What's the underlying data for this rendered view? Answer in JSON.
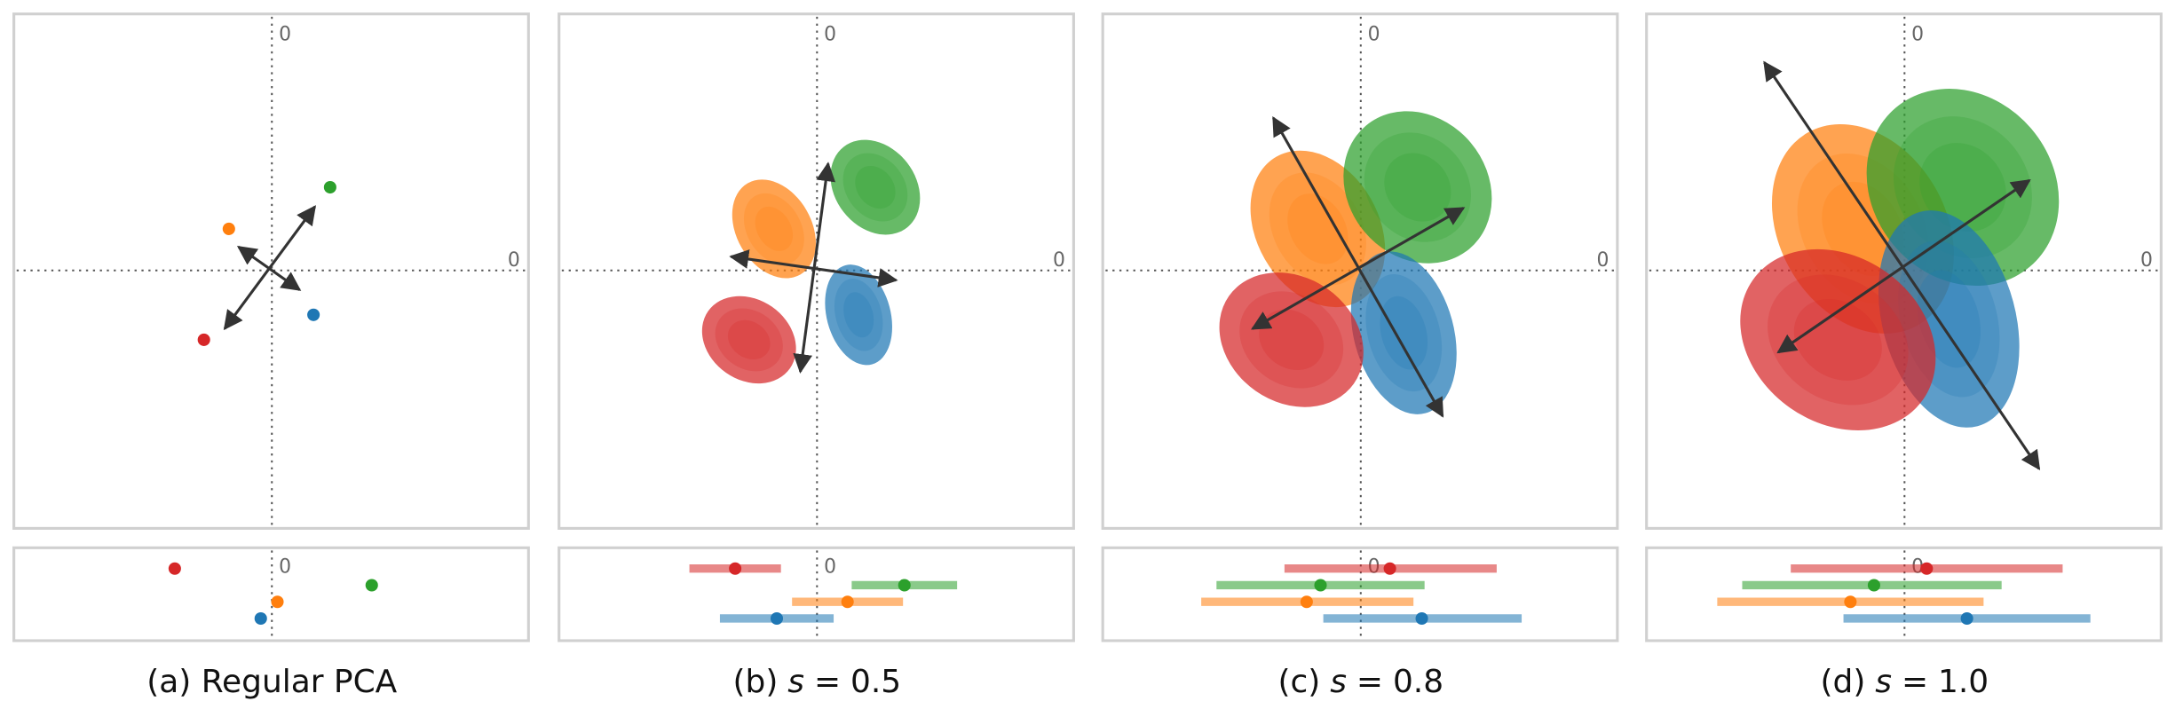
{
  "origin_label": "0",
  "panels": [
    {
      "caption": "(a) Regular PCA"
    },
    {
      "letter": "(b)",
      "param": "s",
      "equals": "=",
      "value": "0.5"
    },
    {
      "letter": "(c)",
      "param": "s",
      "equals": "=",
      "value": "0.8"
    },
    {
      "letter": "(d)",
      "param": "s",
      "equals": "=",
      "value": "1.0"
    }
  ]
}
